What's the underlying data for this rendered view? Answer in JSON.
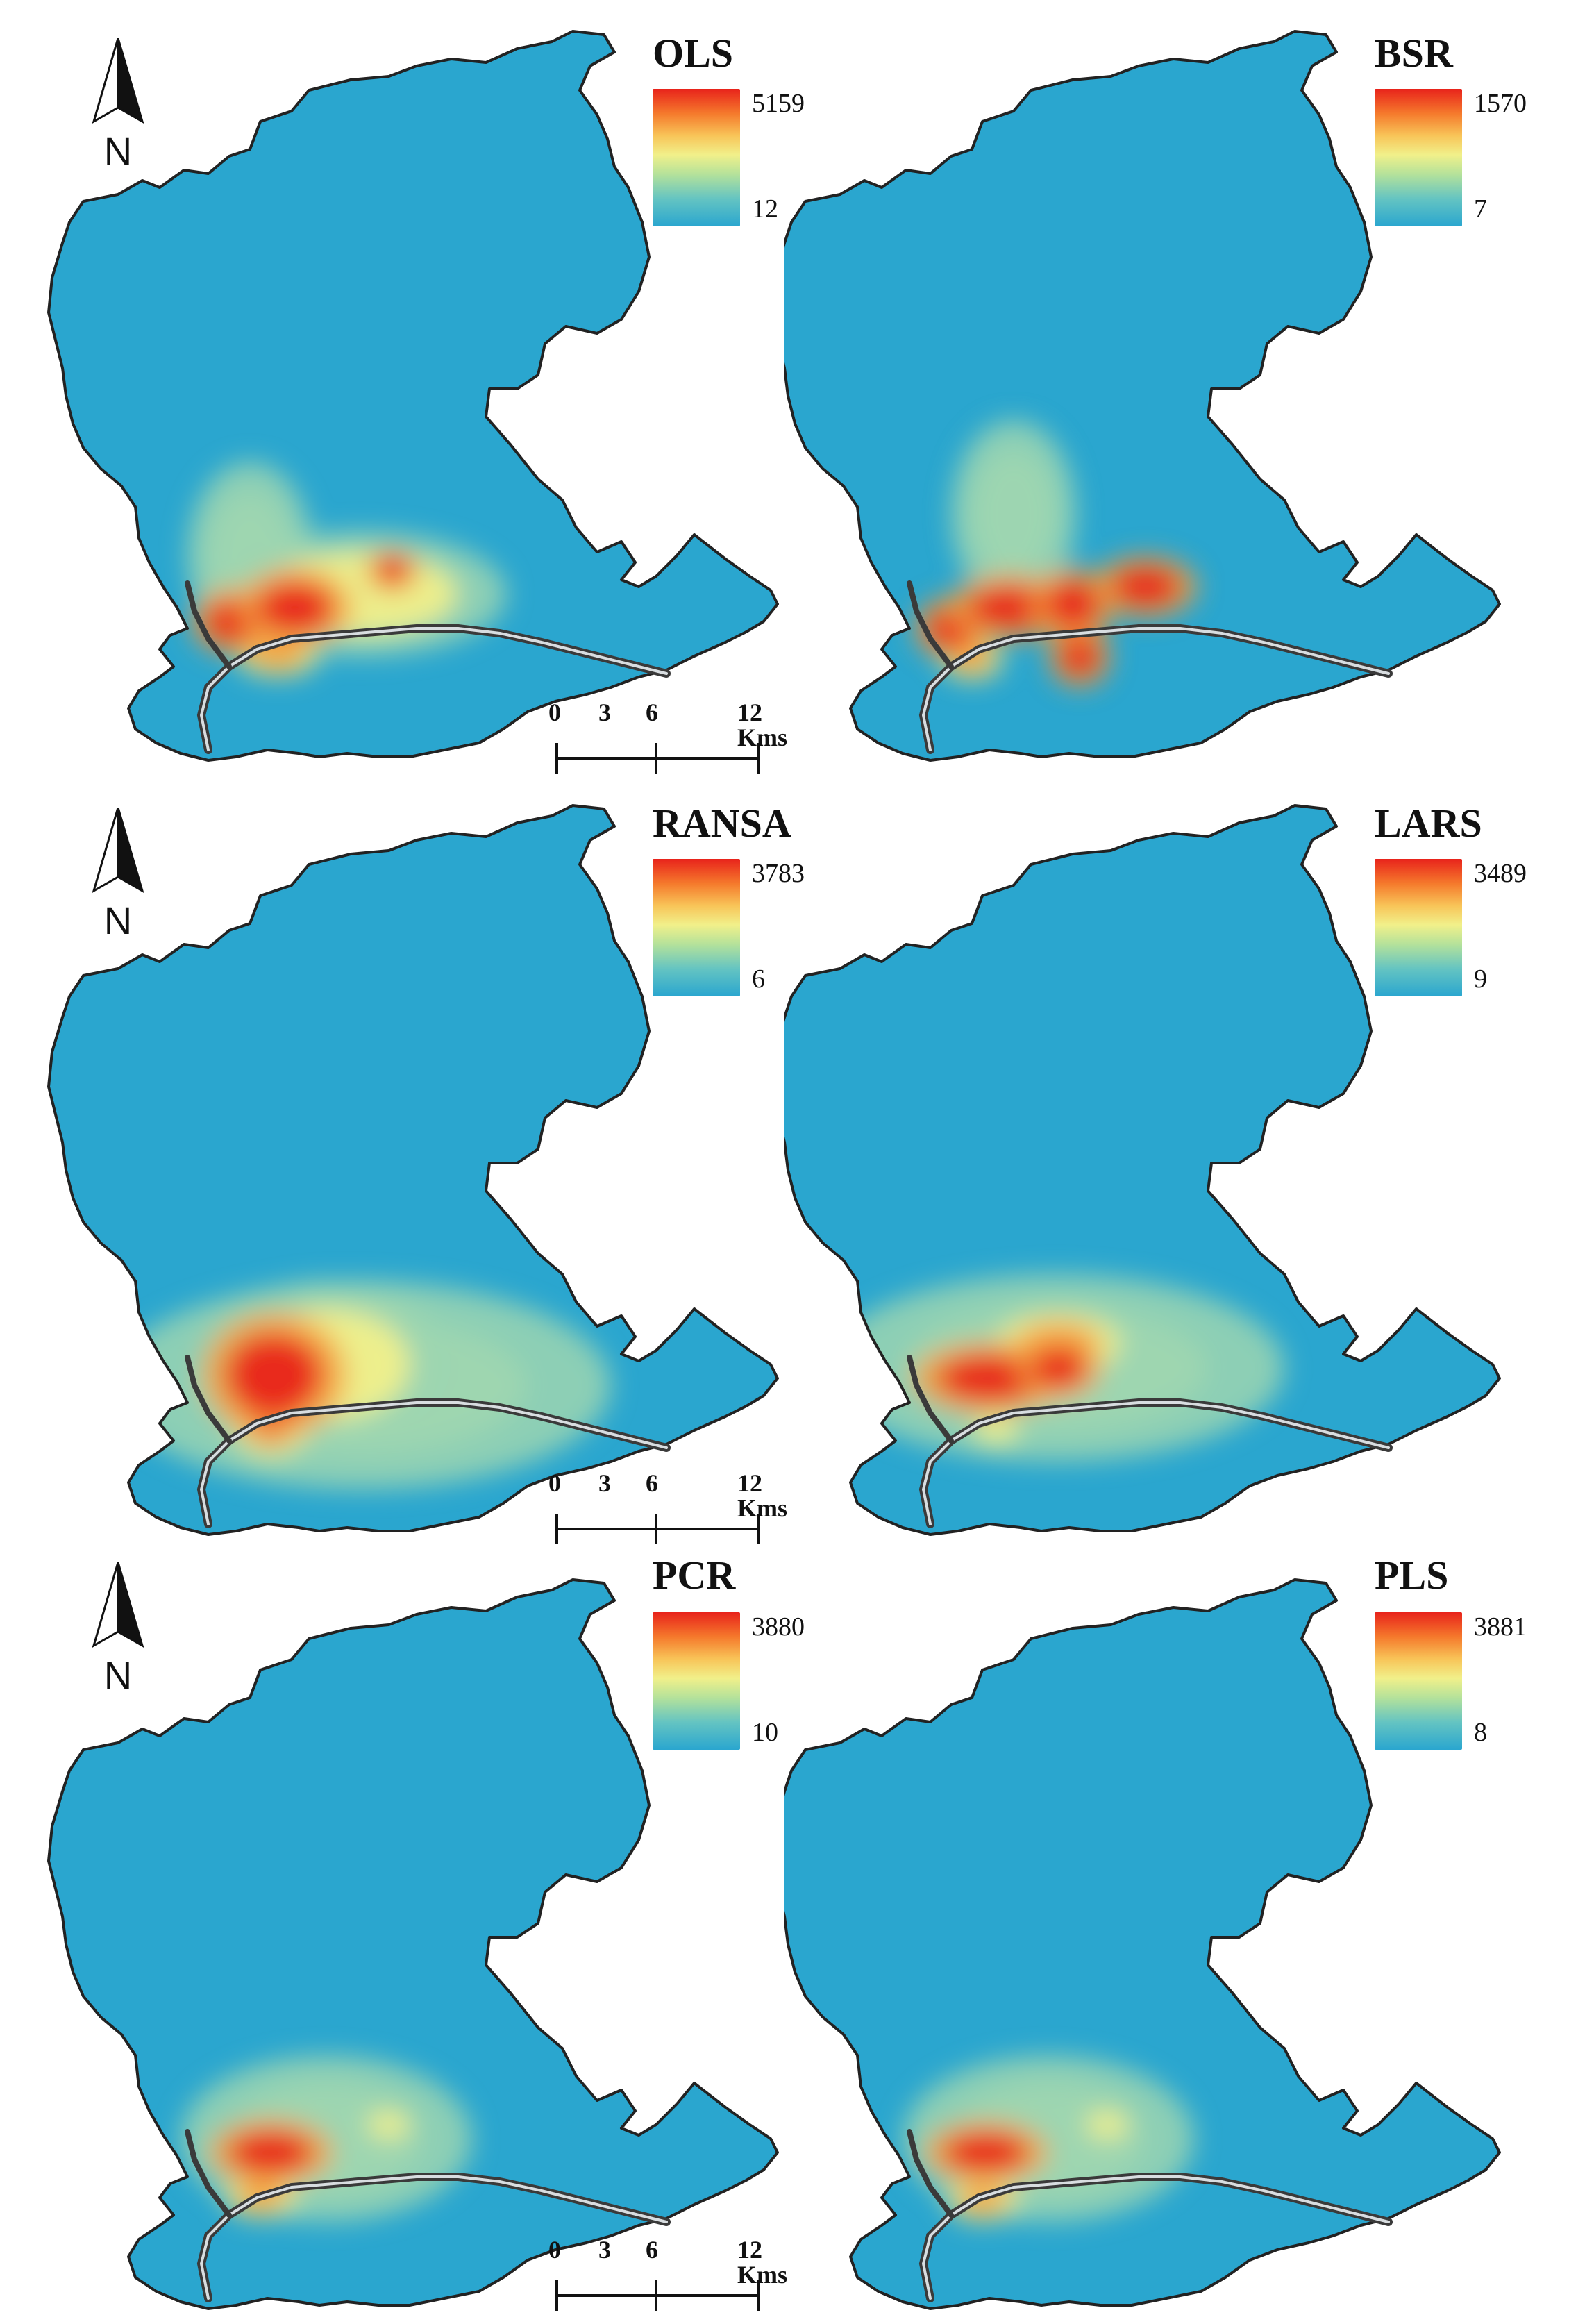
{
  "colors": {
    "low": "#2aa6cf",
    "mid": "#f1f08a",
    "high": "#e8231b",
    "river": "#3a3a3a",
    "outline": "#222222"
  },
  "north_arrow": {
    "label": "N"
  },
  "scale_bar": {
    "ticks": [
      "0",
      "3",
      "6",
      "12 Kms"
    ]
  },
  "panels": [
    {
      "title": "OLS",
      "legend_max": "5159",
      "legend_min": "12",
      "show_north": true,
      "show_scale": false
    },
    {
      "title": "BSR",
      "legend_max": "1570",
      "legend_min": "7",
      "show_north": false,
      "show_scale": false
    },
    {
      "title": "RANSA",
      "legend_max": "3783",
      "legend_min": "6",
      "show_north": true,
      "show_scale": false
    },
    {
      "title": "LARS",
      "legend_max": "3489",
      "legend_min": "9",
      "show_north": false,
      "show_scale": false
    },
    {
      "title": "PCR",
      "legend_max": "3880",
      "legend_min": "10",
      "show_north": true,
      "show_scale": false
    },
    {
      "title": "PLS",
      "legend_max": "3881",
      "legend_min": "8",
      "show_north": false,
      "show_scale": false
    }
  ]
}
